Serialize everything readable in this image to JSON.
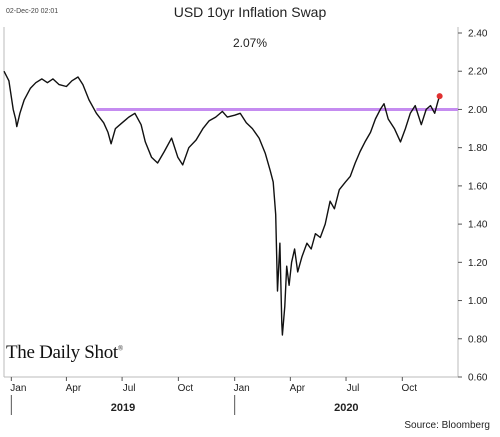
{
  "header": {
    "timestamp": "02-Dec-20 02:01",
    "title": "USD 10yr Inflation Swap",
    "current_value": "2.07%"
  },
  "branding": {
    "logo_text": "The Daily Shot",
    "logo_mark": "®"
  },
  "footer": {
    "source": "Source: Bloomberg"
  },
  "colors": {
    "line": "#111111",
    "reference_line": "#c58cf0",
    "last_point": "#e03030"
  },
  "chart_data": {
    "type": "line",
    "title": "USD 10yr Inflation Swap",
    "subtitle": "2.07%",
    "xlabel": "",
    "ylabel": "",
    "ylim": [
      0.6,
      2.4
    ],
    "yticks": [
      "2.40",
      "2.20",
      "2.00",
      "1.80",
      "1.60",
      "1.40",
      "1.20",
      "1.00",
      "0.80",
      "0.60"
    ],
    "xlim": [
      "2018-12-20",
      "2020-12-31"
    ],
    "xticks": [
      {
        "label": "Jan",
        "date": "2019-01-01"
      },
      {
        "label": "Apr",
        "date": "2019-04-01"
      },
      {
        "label": "Jul",
        "date": "2019-07-01"
      },
      {
        "label": "Oct",
        "date": "2019-10-01"
      },
      {
        "label": "Jan",
        "date": "2020-01-01"
      },
      {
        "label": "Apr",
        "date": "2020-04-01"
      },
      {
        "label": "Jul",
        "date": "2020-07-01"
      },
      {
        "label": "Oct",
        "date": "2020-10-01"
      }
    ],
    "year_labels": [
      {
        "label": "2019",
        "from": "2019-01-01",
        "to": "2020-01-01"
      },
      {
        "label": "2020",
        "from": "2020-01-01",
        "to": "2020-12-31"
      }
    ],
    "reference_line": 2.0,
    "grid": false,
    "last_point": {
      "x": "2020-12-01",
      "y": 2.07
    },
    "series": [
      {
        "points": [
          [
            "2018-12-20",
            2.2
          ],
          [
            "2018-12-28",
            2.15
          ],
          [
            "2019-01-04",
            2.0
          ],
          [
            "2019-01-08",
            1.95
          ],
          [
            "2019-01-10",
            1.91
          ],
          [
            "2019-01-15",
            1.98
          ],
          [
            "2019-01-22",
            2.05
          ],
          [
            "2019-02-01",
            2.11
          ],
          [
            "2019-02-10",
            2.14
          ],
          [
            "2019-02-20",
            2.16
          ],
          [
            "2019-03-01",
            2.14
          ],
          [
            "2019-03-10",
            2.16
          ],
          [
            "2019-03-20",
            2.13
          ],
          [
            "2019-04-01",
            2.12
          ],
          [
            "2019-04-10",
            2.15
          ],
          [
            "2019-04-20",
            2.17
          ],
          [
            "2019-04-28",
            2.13
          ],
          [
            "2019-05-08",
            2.05
          ],
          [
            "2019-05-20",
            1.98
          ],
          [
            "2019-06-01",
            1.93
          ],
          [
            "2019-06-08",
            1.88
          ],
          [
            "2019-06-13",
            1.82
          ],
          [
            "2019-06-20",
            1.9
          ],
          [
            "2019-07-01",
            1.93
          ],
          [
            "2019-07-12",
            1.96
          ],
          [
            "2019-07-22",
            1.98
          ],
          [
            "2019-08-01",
            1.92
          ],
          [
            "2019-08-08",
            1.83
          ],
          [
            "2019-08-18",
            1.75
          ],
          [
            "2019-08-28",
            1.72
          ],
          [
            "2019-09-08",
            1.78
          ],
          [
            "2019-09-20",
            1.85
          ],
          [
            "2019-09-30",
            1.75
          ],
          [
            "2019-10-08",
            1.71
          ],
          [
            "2019-10-18",
            1.8
          ],
          [
            "2019-10-30",
            1.84
          ],
          [
            "2019-11-10",
            1.9
          ],
          [
            "2019-11-20",
            1.94
          ],
          [
            "2019-12-01",
            1.96
          ],
          [
            "2019-12-12",
            1.99
          ],
          [
            "2019-12-20",
            1.96
          ],
          [
            "2020-01-01",
            1.97
          ],
          [
            "2020-01-10",
            1.98
          ],
          [
            "2020-01-20",
            1.93
          ],
          [
            "2020-01-30",
            1.9
          ],
          [
            "2020-02-10",
            1.85
          ],
          [
            "2020-02-20",
            1.77
          ],
          [
            "2020-02-28",
            1.68
          ],
          [
            "2020-03-04",
            1.62
          ],
          [
            "2020-03-08",
            1.45
          ],
          [
            "2020-03-11",
            1.05
          ],
          [
            "2020-03-15",
            1.3
          ],
          [
            "2020-03-18",
            0.88
          ],
          [
            "2020-03-19",
            0.82
          ],
          [
            "2020-03-23",
            0.97
          ],
          [
            "2020-03-26",
            1.18
          ],
          [
            "2020-03-30",
            1.08
          ],
          [
            "2020-04-03",
            1.2
          ],
          [
            "2020-04-08",
            1.27
          ],
          [
            "2020-04-13",
            1.15
          ],
          [
            "2020-04-20",
            1.23
          ],
          [
            "2020-04-28",
            1.3
          ],
          [
            "2020-05-05",
            1.27
          ],
          [
            "2020-05-12",
            1.35
          ],
          [
            "2020-05-20",
            1.33
          ],
          [
            "2020-05-28",
            1.4
          ],
          [
            "2020-06-05",
            1.52
          ],
          [
            "2020-06-12",
            1.48
          ],
          [
            "2020-06-20",
            1.58
          ],
          [
            "2020-06-30",
            1.62
          ],
          [
            "2020-07-08",
            1.65
          ],
          [
            "2020-07-16",
            1.72
          ],
          [
            "2020-07-24",
            1.78
          ],
          [
            "2020-08-01",
            1.83
          ],
          [
            "2020-08-10",
            1.88
          ],
          [
            "2020-08-18",
            1.95
          ],
          [
            "2020-08-26",
            2.0
          ],
          [
            "2020-09-01",
            2.03
          ],
          [
            "2020-09-08",
            1.95
          ],
          [
            "2020-09-18",
            1.9
          ],
          [
            "2020-09-28",
            1.83
          ],
          [
            "2020-10-06",
            1.9
          ],
          [
            "2020-10-14",
            1.98
          ],
          [
            "2020-10-22",
            2.02
          ],
          [
            "2020-11-01",
            1.92
          ],
          [
            "2020-11-09",
            2.0
          ],
          [
            "2020-11-16",
            2.02
          ],
          [
            "2020-11-23",
            1.98
          ],
          [
            "2020-11-28",
            2.04
          ],
          [
            "2020-12-01",
            2.07
          ]
        ]
      }
    ]
  }
}
